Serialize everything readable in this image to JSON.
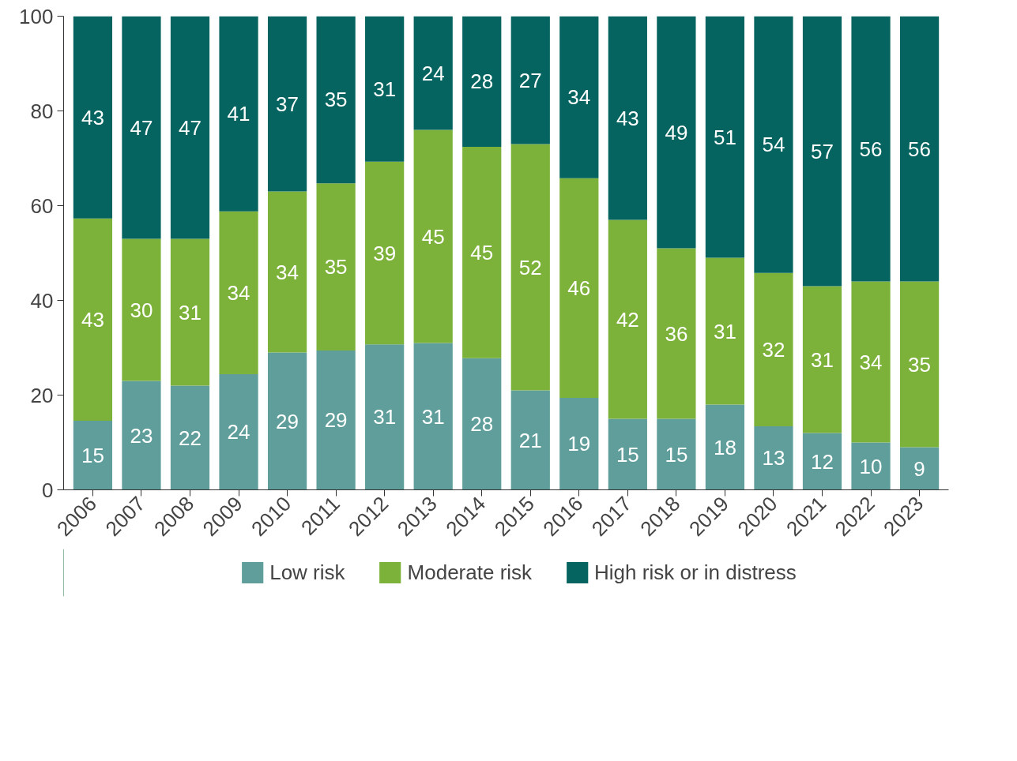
{
  "chart_data": {
    "type": "bar",
    "stacked": true,
    "categories": [
      "2006",
      "2007",
      "2008",
      "2009",
      "2010",
      "2011",
      "2012",
      "2013",
      "2014",
      "2015",
      "2016",
      "2017",
      "2018",
      "2019",
      "2020",
      "2021",
      "2022",
      "2023"
    ],
    "series": [
      {
        "name": "Low risk",
        "color": "#5f9e9a",
        "values": [
          14.6,
          23,
          22,
          24.4,
          29,
          29.4,
          30.7,
          31,
          27.8,
          21,
          19.4,
          15,
          15,
          18,
          13.4,
          12,
          10,
          9
        ],
        "value_labels": [
          "15",
          "23",
          "22",
          "24",
          "29",
          "29",
          "31",
          "31",
          "28",
          "21",
          "19",
          "15",
          "15",
          "18",
          "13",
          "12",
          "10",
          "9"
        ]
      },
      {
        "name": "Moderate risk",
        "color": "#7db23a",
        "values": [
          42.7,
          30,
          31,
          34.4,
          34,
          35.3,
          38.6,
          45,
          44.6,
          52,
          46.4,
          42,
          36,
          31,
          32.4,
          31,
          34,
          35
        ],
        "value_labels": [
          "43",
          "30",
          "31",
          "34",
          "34",
          "35",
          "39",
          "45",
          "45",
          "52",
          "46",
          "42",
          "36",
          "31",
          "32",
          "31",
          "34",
          "35"
        ]
      },
      {
        "name": "High risk or in distress",
        "color": "#05645f",
        "values": [
          42.7,
          47,
          47,
          41.2,
          37,
          35.3,
          30.7,
          24,
          27.6,
          27,
          34.2,
          43,
          49,
          51,
          54.2,
          57,
          56,
          56
        ],
        "value_labels": [
          "43",
          "47",
          "47",
          "41",
          "37",
          "35",
          "31",
          "24",
          "28",
          "27",
          "34",
          "43",
          "49",
          "51",
          "54",
          "57",
          "56",
          "56"
        ]
      }
    ],
    "ylim": [
      0,
      100
    ],
    "yticks": [
      0,
      20,
      40,
      60,
      80,
      100
    ],
    "legend": "bottom",
    "grid": false
  }
}
